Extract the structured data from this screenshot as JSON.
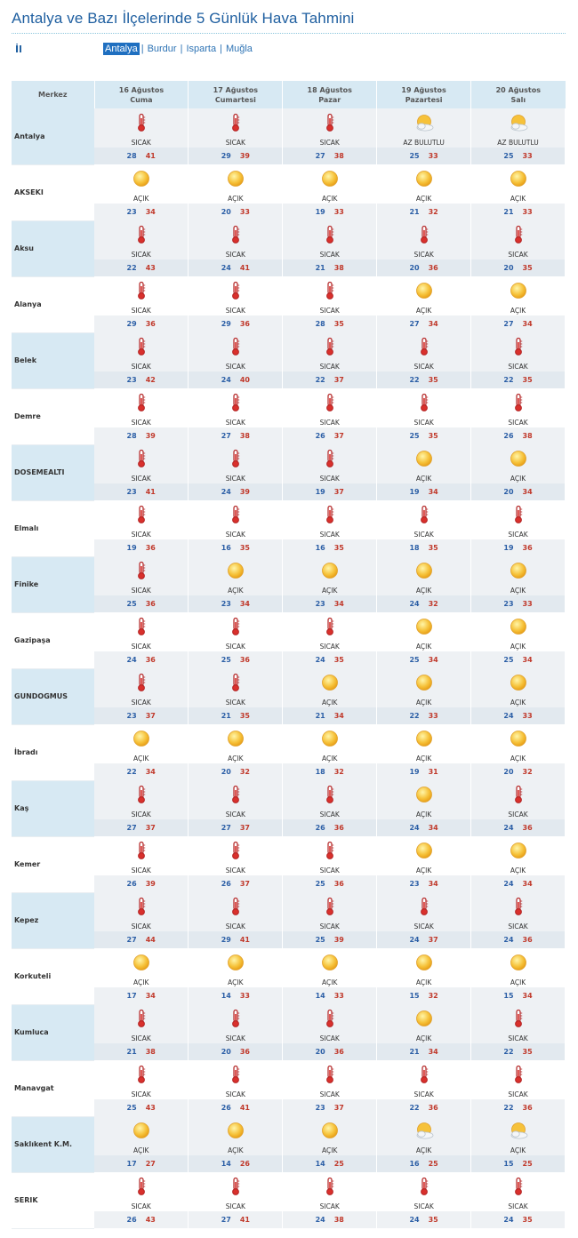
{
  "title": "Antalya ve Bazı İlçelerinde 5 Günlük Hava Tahmini",
  "il_label": "İl",
  "provinces": [
    "Antalya",
    "Burdur",
    "Isparta",
    "Muğla"
  ],
  "active_province": "Antalya",
  "table": {
    "merkez_header": "Merkez",
    "days": [
      {
        "date": "16 Ağustos",
        "day": "Cuma"
      },
      {
        "date": "17 Ağustos",
        "day": "Cumartesi"
      },
      {
        "date": "18 Ağustos",
        "day": "Pazar"
      },
      {
        "date": "19 Ağustos",
        "day": "Pazartesi"
      },
      {
        "date": "20 Ağustos",
        "day": "Salı"
      }
    ],
    "rows": [
      {
        "city": "Antalya",
        "f": [
          {
            "icon": "thermometer-icon",
            "cond": "SICAK",
            "lo": "28",
            "hi": "41"
          },
          {
            "icon": "thermometer-icon",
            "cond": "SICAK",
            "lo": "29",
            "hi": "39"
          },
          {
            "icon": "thermometer-icon",
            "cond": "SICAK",
            "lo": "27",
            "hi": "38"
          },
          {
            "icon": "partly-cloudy-icon",
            "cond": "AZ BULUTLU",
            "lo": "25",
            "hi": "33"
          },
          {
            "icon": "partly-cloudy-icon",
            "cond": "AZ BULUTLU",
            "lo": "25",
            "hi": "33"
          }
        ]
      },
      {
        "city": "AKSEKI",
        "f": [
          {
            "icon": "sun-icon",
            "cond": "AÇIK",
            "lo": "23",
            "hi": "34"
          },
          {
            "icon": "sun-icon",
            "cond": "AÇIK",
            "lo": "20",
            "hi": "33"
          },
          {
            "icon": "sun-icon",
            "cond": "AÇIK",
            "lo": "19",
            "hi": "33"
          },
          {
            "icon": "sun-icon",
            "cond": "AÇIK",
            "lo": "21",
            "hi": "32"
          },
          {
            "icon": "sun-icon",
            "cond": "AÇIK",
            "lo": "21",
            "hi": "33"
          }
        ]
      },
      {
        "city": "Aksu",
        "f": [
          {
            "icon": "thermometer-icon",
            "cond": "SICAK",
            "lo": "22",
            "hi": "43"
          },
          {
            "icon": "thermometer-icon",
            "cond": "SICAK",
            "lo": "24",
            "hi": "41"
          },
          {
            "icon": "thermometer-icon",
            "cond": "SICAK",
            "lo": "21",
            "hi": "38"
          },
          {
            "icon": "thermometer-icon",
            "cond": "SICAK",
            "lo": "20",
            "hi": "36"
          },
          {
            "icon": "thermometer-icon",
            "cond": "SICAK",
            "lo": "20",
            "hi": "35"
          }
        ]
      },
      {
        "city": "Alanya",
        "f": [
          {
            "icon": "thermometer-icon",
            "cond": "SICAK",
            "lo": "29",
            "hi": "36"
          },
          {
            "icon": "thermometer-icon",
            "cond": "SICAK",
            "lo": "29",
            "hi": "36"
          },
          {
            "icon": "thermometer-icon",
            "cond": "SICAK",
            "lo": "28",
            "hi": "35"
          },
          {
            "icon": "sun-icon",
            "cond": "AÇIK",
            "lo": "27",
            "hi": "34"
          },
          {
            "icon": "sun-icon",
            "cond": "AÇIK",
            "lo": "27",
            "hi": "34"
          }
        ]
      },
      {
        "city": "Belek",
        "f": [
          {
            "icon": "thermometer-icon",
            "cond": "SICAK",
            "lo": "23",
            "hi": "42"
          },
          {
            "icon": "thermometer-icon",
            "cond": "SICAK",
            "lo": "24",
            "hi": "40"
          },
          {
            "icon": "thermometer-icon",
            "cond": "SICAK",
            "lo": "22",
            "hi": "37"
          },
          {
            "icon": "thermometer-icon",
            "cond": "SICAK",
            "lo": "22",
            "hi": "35"
          },
          {
            "icon": "thermometer-icon",
            "cond": "SICAK",
            "lo": "22",
            "hi": "35"
          }
        ]
      },
      {
        "city": "Demre",
        "f": [
          {
            "icon": "thermometer-icon",
            "cond": "SICAK",
            "lo": "28",
            "hi": "39"
          },
          {
            "icon": "thermometer-icon",
            "cond": "SICAK",
            "lo": "27",
            "hi": "38"
          },
          {
            "icon": "thermometer-icon",
            "cond": "SICAK",
            "lo": "26",
            "hi": "37"
          },
          {
            "icon": "thermometer-icon",
            "cond": "SICAK",
            "lo": "25",
            "hi": "35"
          },
          {
            "icon": "thermometer-icon",
            "cond": "SICAK",
            "lo": "26",
            "hi": "38"
          }
        ]
      },
      {
        "city": "DOSEMEALTI",
        "f": [
          {
            "icon": "thermometer-icon",
            "cond": "SICAK",
            "lo": "23",
            "hi": "41"
          },
          {
            "icon": "thermometer-icon",
            "cond": "SICAK",
            "lo": "24",
            "hi": "39"
          },
          {
            "icon": "thermometer-icon",
            "cond": "SICAK",
            "lo": "19",
            "hi": "37"
          },
          {
            "icon": "sun-icon",
            "cond": "AÇIK",
            "lo": "19",
            "hi": "34"
          },
          {
            "icon": "sun-icon",
            "cond": "AÇIK",
            "lo": "20",
            "hi": "34"
          }
        ]
      },
      {
        "city": "Elmalı",
        "f": [
          {
            "icon": "thermometer-icon",
            "cond": "SICAK",
            "lo": "19",
            "hi": "36"
          },
          {
            "icon": "thermometer-icon",
            "cond": "SICAK",
            "lo": "16",
            "hi": "35"
          },
          {
            "icon": "thermometer-icon",
            "cond": "SICAK",
            "lo": "16",
            "hi": "35"
          },
          {
            "icon": "thermometer-icon",
            "cond": "SICAK",
            "lo": "18",
            "hi": "35"
          },
          {
            "icon": "thermometer-icon",
            "cond": "SICAK",
            "lo": "19",
            "hi": "36"
          }
        ]
      },
      {
        "city": "Finike",
        "f": [
          {
            "icon": "thermometer-icon",
            "cond": "SICAK",
            "lo": "25",
            "hi": "36"
          },
          {
            "icon": "sun-icon",
            "cond": "AÇIK",
            "lo": "23",
            "hi": "34"
          },
          {
            "icon": "sun-icon",
            "cond": "AÇIK",
            "lo": "23",
            "hi": "34"
          },
          {
            "icon": "sun-icon",
            "cond": "AÇIK",
            "lo": "24",
            "hi": "32"
          },
          {
            "icon": "sun-icon",
            "cond": "AÇIK",
            "lo": "23",
            "hi": "33"
          }
        ]
      },
      {
        "city": "Gazipaşa",
        "f": [
          {
            "icon": "thermometer-icon",
            "cond": "SICAK",
            "lo": "24",
            "hi": "36"
          },
          {
            "icon": "thermometer-icon",
            "cond": "SICAK",
            "lo": "25",
            "hi": "36"
          },
          {
            "icon": "thermometer-icon",
            "cond": "SICAK",
            "lo": "24",
            "hi": "35"
          },
          {
            "icon": "sun-icon",
            "cond": "AÇIK",
            "lo": "25",
            "hi": "34"
          },
          {
            "icon": "sun-icon",
            "cond": "AÇIK",
            "lo": "25",
            "hi": "34"
          }
        ]
      },
      {
        "city": "GUNDOGMUS",
        "f": [
          {
            "icon": "thermometer-icon",
            "cond": "SICAK",
            "lo": "23",
            "hi": "37"
          },
          {
            "icon": "thermometer-icon",
            "cond": "SICAK",
            "lo": "21",
            "hi": "35"
          },
          {
            "icon": "sun-icon",
            "cond": "AÇIK",
            "lo": "21",
            "hi": "34"
          },
          {
            "icon": "sun-icon",
            "cond": "AÇIK",
            "lo": "22",
            "hi": "33"
          },
          {
            "icon": "sun-icon",
            "cond": "AÇIK",
            "lo": "24",
            "hi": "33"
          }
        ]
      },
      {
        "city": "İbradı",
        "f": [
          {
            "icon": "sun-icon",
            "cond": "AÇIK",
            "lo": "22",
            "hi": "34"
          },
          {
            "icon": "sun-icon",
            "cond": "AÇIK",
            "lo": "20",
            "hi": "32"
          },
          {
            "icon": "sun-icon",
            "cond": "AÇIK",
            "lo": "18",
            "hi": "32"
          },
          {
            "icon": "sun-icon",
            "cond": "AÇIK",
            "lo": "19",
            "hi": "31"
          },
          {
            "icon": "sun-icon",
            "cond": "AÇIK",
            "lo": "20",
            "hi": "32"
          }
        ]
      },
      {
        "city": "Kaş",
        "f": [
          {
            "icon": "thermometer-icon",
            "cond": "SICAK",
            "lo": "27",
            "hi": "37"
          },
          {
            "icon": "thermometer-icon",
            "cond": "SICAK",
            "lo": "27",
            "hi": "37"
          },
          {
            "icon": "thermometer-icon",
            "cond": "SICAK",
            "lo": "26",
            "hi": "36"
          },
          {
            "icon": "sun-icon",
            "cond": "AÇIK",
            "lo": "24",
            "hi": "34"
          },
          {
            "icon": "thermometer-icon",
            "cond": "SICAK",
            "lo": "24",
            "hi": "36"
          }
        ]
      },
      {
        "city": "Kemer",
        "f": [
          {
            "icon": "thermometer-icon",
            "cond": "SICAK",
            "lo": "26",
            "hi": "39"
          },
          {
            "icon": "thermometer-icon",
            "cond": "SICAK",
            "lo": "26",
            "hi": "37"
          },
          {
            "icon": "thermometer-icon",
            "cond": "SICAK",
            "lo": "25",
            "hi": "36"
          },
          {
            "icon": "sun-icon",
            "cond": "AÇIK",
            "lo": "23",
            "hi": "34"
          },
          {
            "icon": "sun-icon",
            "cond": "AÇIK",
            "lo": "24",
            "hi": "34"
          }
        ]
      },
      {
        "city": "Kepez",
        "f": [
          {
            "icon": "thermometer-icon",
            "cond": "SICAK",
            "lo": "27",
            "hi": "44"
          },
          {
            "icon": "thermometer-icon",
            "cond": "SICAK",
            "lo": "29",
            "hi": "41"
          },
          {
            "icon": "thermometer-icon",
            "cond": "SICAK",
            "lo": "25",
            "hi": "39"
          },
          {
            "icon": "thermometer-icon",
            "cond": "SICAK",
            "lo": "24",
            "hi": "37"
          },
          {
            "icon": "thermometer-icon",
            "cond": "SICAK",
            "lo": "24",
            "hi": "36"
          }
        ]
      },
      {
        "city": "Korkuteli",
        "f": [
          {
            "icon": "sun-icon",
            "cond": "AÇIK",
            "lo": "17",
            "hi": "34"
          },
          {
            "icon": "sun-icon",
            "cond": "AÇIK",
            "lo": "14",
            "hi": "33"
          },
          {
            "icon": "sun-icon",
            "cond": "AÇIK",
            "lo": "14",
            "hi": "33"
          },
          {
            "icon": "sun-icon",
            "cond": "AÇIK",
            "lo": "15",
            "hi": "32"
          },
          {
            "icon": "sun-icon",
            "cond": "AÇIK",
            "lo": "15",
            "hi": "34"
          }
        ]
      },
      {
        "city": "Kumluca",
        "f": [
          {
            "icon": "thermometer-icon",
            "cond": "SICAK",
            "lo": "21",
            "hi": "38"
          },
          {
            "icon": "thermometer-icon",
            "cond": "SICAK",
            "lo": "20",
            "hi": "36"
          },
          {
            "icon": "thermometer-icon",
            "cond": "SICAK",
            "lo": "20",
            "hi": "36"
          },
          {
            "icon": "sun-icon",
            "cond": "AÇIK",
            "lo": "21",
            "hi": "34"
          },
          {
            "icon": "thermometer-icon",
            "cond": "SICAK",
            "lo": "22",
            "hi": "35"
          }
        ]
      },
      {
        "city": "Manavgat",
        "f": [
          {
            "icon": "thermometer-icon",
            "cond": "SICAK",
            "lo": "25",
            "hi": "43"
          },
          {
            "icon": "thermometer-icon",
            "cond": "SICAK",
            "lo": "26",
            "hi": "41"
          },
          {
            "icon": "thermometer-icon",
            "cond": "SICAK",
            "lo": "23",
            "hi": "37"
          },
          {
            "icon": "thermometer-icon",
            "cond": "SICAK",
            "lo": "22",
            "hi": "36"
          },
          {
            "icon": "thermometer-icon",
            "cond": "SICAK",
            "lo": "22",
            "hi": "36"
          }
        ]
      },
      {
        "city": "Saklıkent K.M.",
        "f": [
          {
            "icon": "sun-icon",
            "cond": "AÇIK",
            "lo": "17",
            "hi": "27"
          },
          {
            "icon": "sun-icon",
            "cond": "AÇIK",
            "lo": "14",
            "hi": "26"
          },
          {
            "icon": "sun-icon",
            "cond": "AÇIK",
            "lo": "14",
            "hi": "25"
          },
          {
            "icon": "partly-cloudy-icon",
            "cond": "AÇIK",
            "lo": "16",
            "hi": "25"
          },
          {
            "icon": "partly-cloudy-icon",
            "cond": "AÇIK",
            "lo": "15",
            "hi": "25"
          }
        ]
      },
      {
        "city": "SERIK",
        "f": [
          {
            "icon": "thermometer-icon",
            "cond": "SICAK",
            "lo": "26",
            "hi": "43"
          },
          {
            "icon": "thermometer-icon",
            "cond": "SICAK",
            "lo": "27",
            "hi": "41"
          },
          {
            "icon": "thermometer-icon",
            "cond": "SICAK",
            "lo": "24",
            "hi": "38"
          },
          {
            "icon": "thermometer-icon",
            "cond": "SICAK",
            "lo": "24",
            "hi": "35"
          },
          {
            "icon": "thermometer-icon",
            "cond": "SICAK",
            "lo": "24",
            "hi": "35"
          }
        ]
      }
    ]
  },
  "colors": {
    "accent": "#1f6fc0",
    "header_bg": "#d7e9f3",
    "low_temp": "#2c5fa6",
    "high_temp": "#c0392b"
  }
}
